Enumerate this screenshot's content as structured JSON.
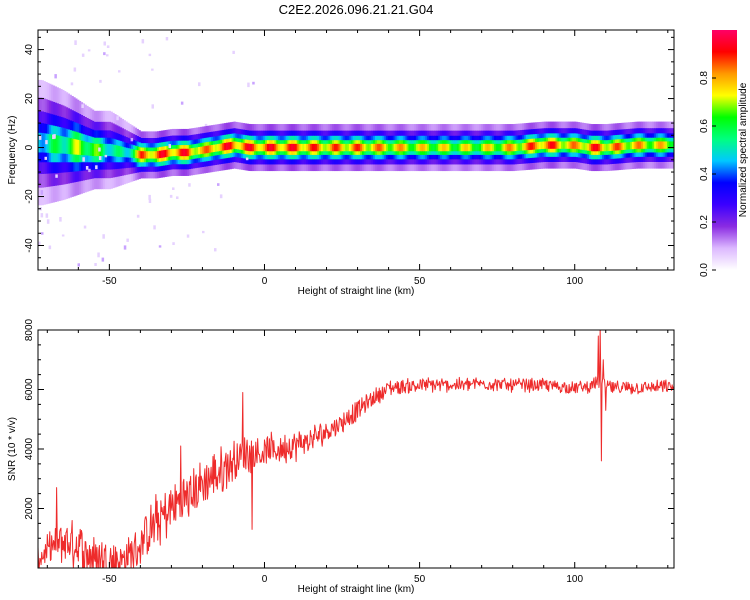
{
  "figure": {
    "title": "C2E2.2026.096.21.21.G04"
  },
  "chart_data": [
    {
      "type": "heatmap",
      "name": "spectrogram",
      "xlabel": "Height of straight line (km)",
      "ylabel": "Frequency (Hz)",
      "xlim": [
        -73,
        132
      ],
      "ylim": [
        -50,
        48
      ],
      "xticks": [
        -50,
        0,
        50,
        100
      ],
      "yticks": [
        -40,
        -20,
        0,
        20,
        40
      ],
      "colorbar": {
        "label": "Normalized spectral amplitude",
        "range": [
          0,
          1
        ],
        "ticks": [
          0.0,
          0.2,
          0.4,
          0.6,
          0.8
        ],
        "tick_labels": [
          "0.0",
          "0.2",
          "0.4",
          "0.6",
          "0.8"
        ],
        "colormap": "rainbow",
        "colors": [
          "#ffffff",
          "#dcb8ff",
          "#8a2be2",
          "#3b00ff",
          "#0000ff",
          "#00c8ff",
          "#00ff80",
          "#00ff00",
          "#ffff00",
          "#ff9900",
          "#ff0000",
          "#ff0066"
        ]
      },
      "ridge": {
        "description": "dominant frequency band vs height",
        "heights": [
          -72,
          -65,
          -60,
          -55,
          -50,
          -45,
          -40,
          -35,
          -30,
          -25,
          -20,
          -15,
          -10,
          -5,
          0,
          10,
          20,
          30,
          40,
          50,
          60,
          70,
          80,
          90,
          100,
          105,
          110,
          120,
          132
        ],
        "center_hz": [
          2,
          1,
          0,
          -1,
          -1,
          -2,
          -3,
          -3,
          -2,
          -2,
          -1,
          0,
          1,
          0,
          0,
          0,
          0,
          0,
          0,
          0,
          0,
          0,
          0,
          1,
          1,
          0,
          0,
          1,
          1
        ],
        "halfwidth_hz": [
          8,
          7,
          6,
          5,
          5,
          4,
          3,
          3,
          3,
          3,
          3,
          3,
          3,
          3,
          3,
          3,
          3,
          3,
          3,
          3,
          3,
          3,
          3,
          3,
          3,
          3,
          3,
          3,
          3
        ],
        "peak_amplitude": [
          0.55,
          0.65,
          0.75,
          0.7,
          0.6,
          0.55,
          0.9,
          0.95,
          0.95,
          0.95,
          0.85,
          0.95,
          0.95,
          0.95,
          0.95,
          0.95,
          0.9,
          0.9,
          0.85,
          0.8,
          0.78,
          0.78,
          0.85,
          0.95,
          0.85,
          0.95,
          0.9,
          0.85,
          0.8
        ]
      }
    },
    {
      "type": "line",
      "name": "snr",
      "xlabel": "Height of straight line (km)",
      "ylabel": "SNR (10 * v/v)",
      "xlim": [
        -73,
        132
      ],
      "ylim": [
        0,
        8000
      ],
      "xticks": [
        -50,
        0,
        50,
        100
      ],
      "yticks": [
        2000,
        4000,
        6000,
        8000
      ],
      "color": "#ee2b2b",
      "trend_x": [
        -73,
        -68,
        -65,
        -60,
        -55,
        -50,
        -45,
        -40,
        -35,
        -30,
        -25,
        -20,
        -15,
        -10,
        -5,
        0,
        5,
        10,
        15,
        20,
        25,
        30,
        35,
        40,
        50,
        60,
        70,
        80,
        90,
        100,
        105,
        108,
        112,
        120,
        132
      ],
      "trend_y": [
        300,
        700,
        900,
        700,
        400,
        250,
        300,
        800,
        1500,
        2000,
        2400,
        2800,
        3200,
        3600,
        3900,
        3900,
        4000,
        4100,
        4300,
        4600,
        4900,
        5300,
        5700,
        6050,
        6150,
        6150,
        6200,
        6150,
        6150,
        6050,
        6100,
        6300,
        6050,
        6050,
        6100
      ],
      "noise_x": [
        -73,
        -65,
        -55,
        -45,
        -35,
        -20,
        -10,
        0,
        10,
        20,
        30,
        38,
        60,
        132
      ],
      "noise_y": [
        350,
        700,
        700,
        500,
        800,
        700,
        650,
        500,
        450,
        350,
        300,
        250,
        200,
        200
      ],
      "spikes": [
        {
          "x": -7,
          "y": 5900
        },
        {
          "x": -4,
          "y": 1300
        },
        {
          "x": -67,
          "y": 2700
        },
        {
          "x": -27,
          "y": 4100
        },
        {
          "x": 107.6,
          "y": 7800
        },
        {
          "x": 108.2,
          "y": 8100
        },
        {
          "x": 108.6,
          "y": 3600
        },
        {
          "x": 109.2,
          "y": 7000
        },
        {
          "x": 110,
          "y": 5300
        }
      ]
    }
  ]
}
